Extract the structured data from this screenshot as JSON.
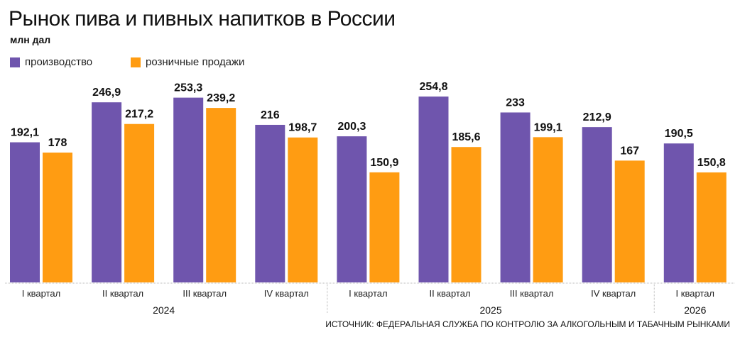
{
  "chart_data": {
    "type": "bar",
    "title": "Рынок пива и пивных напитков в России",
    "ylabel": "млн дал",
    "categories": [
      "I квартал",
      "II квартал",
      "III квартал",
      "IV квартал",
      "I квартал",
      "II квартал",
      "III квартал",
      "IV квартал",
      "I квартал"
    ],
    "years": [
      {
        "label": "2024",
        "span": [
          0,
          3
        ]
      },
      {
        "label": "2025",
        "span": [
          4,
          7
        ]
      },
      {
        "label": "2026",
        "span": [
          8,
          8
        ]
      }
    ],
    "series": [
      {
        "name": "производство",
        "color": "#6f55ad",
        "values": [
          192.1,
          246.9,
          253.3,
          216,
          200.3,
          254.8,
          233,
          212.9,
          190.5
        ],
        "labels": [
          "192,1",
          "246,9",
          "253,3",
          "216",
          "200,3",
          "254,8",
          "233",
          "212,9",
          "190,5"
        ]
      },
      {
        "name": "розничные продажи",
        "color": "#ff9c12",
        "values": [
          178,
          217.2,
          239.2,
          198.7,
          150.9,
          185.6,
          199.1,
          167,
          150.8
        ],
        "labels": [
          "178",
          "217,2",
          "239,2",
          "198,7",
          "150,9",
          "185,6",
          "199,1",
          "167",
          "150,8"
        ]
      }
    ],
    "legend_placement": "top-left",
    "grid": false,
    "source": "ИСТОЧНИК: ФЕДЕРАЛЬНАЯ СЛУЖБА ПО КОНТРОЛЮ ЗА АЛКОГОЛЬНЫМ И ТАБАЧНЫМ РЫНКАМИ"
  }
}
